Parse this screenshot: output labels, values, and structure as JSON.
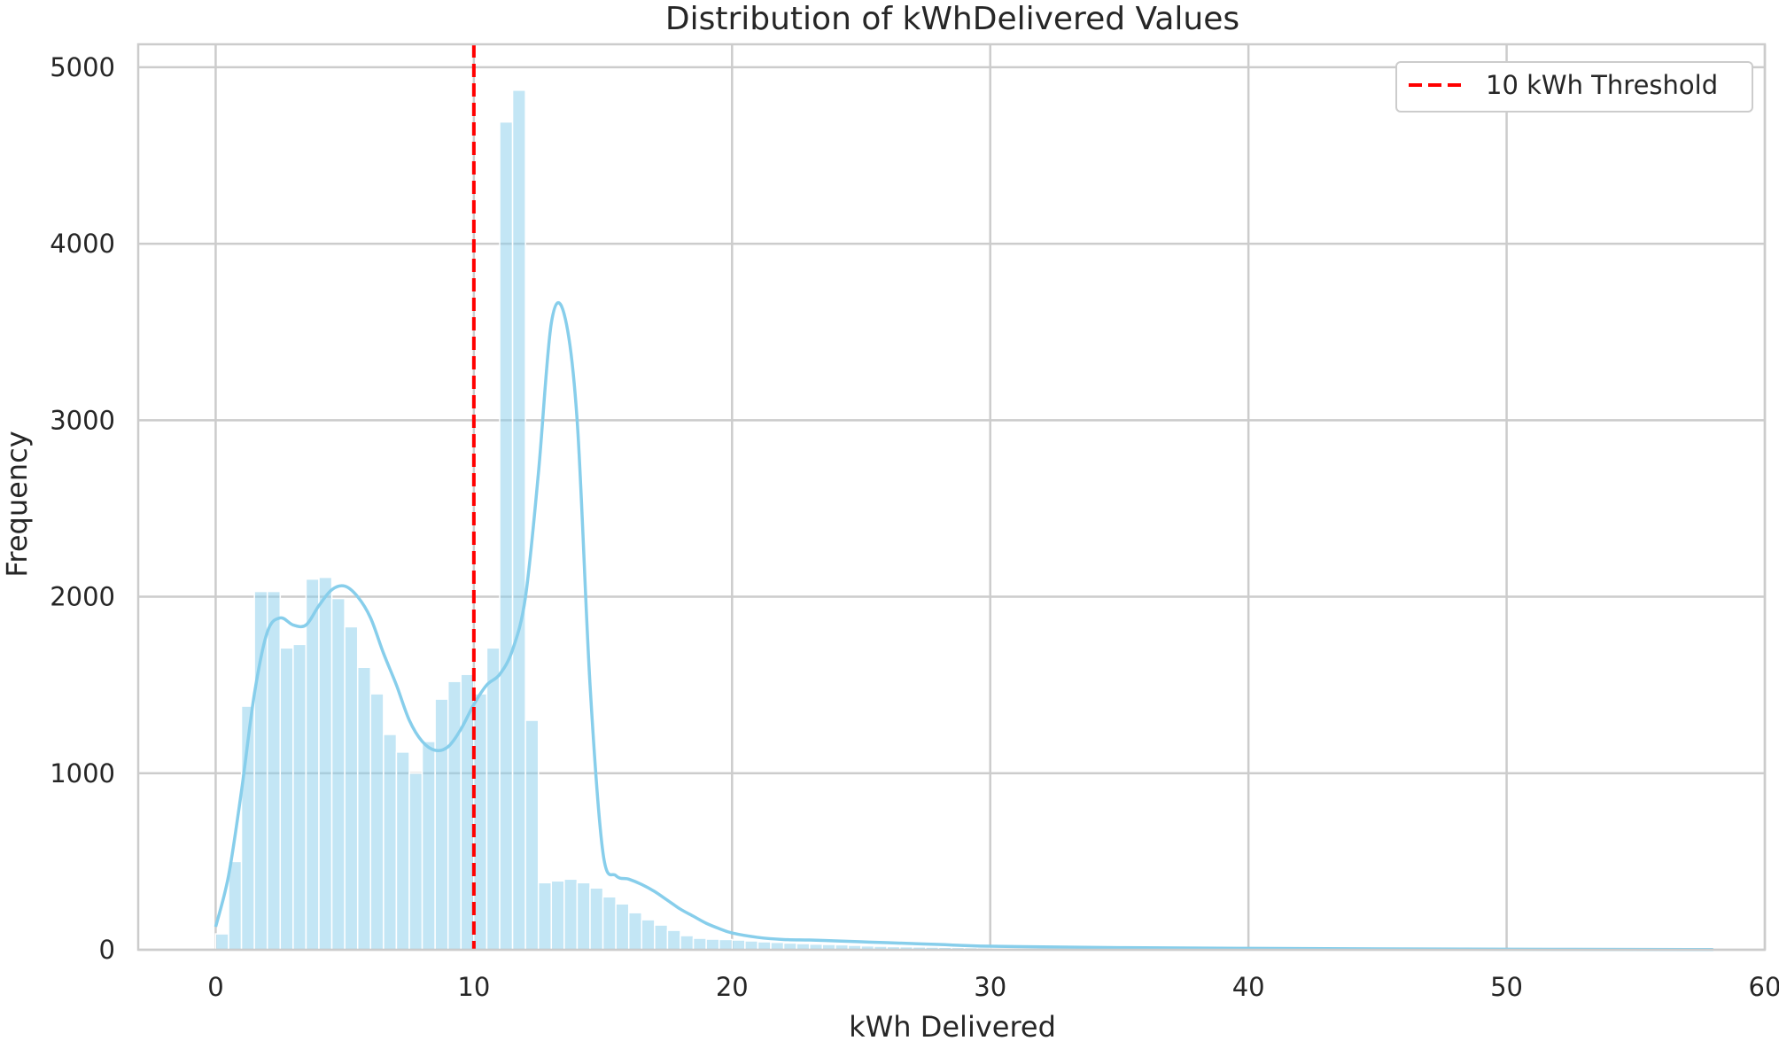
{
  "chart_data": {
    "type": "bar",
    "subtype": "histogram-with-kde",
    "title": "Distribution of kWhDelivered Values",
    "xlabel": "kWh Delivered",
    "ylabel": "Frequency",
    "xlim": [
      -3,
      60
    ],
    "ylim": [
      0,
      5130
    ],
    "xticks": [
      0,
      10,
      20,
      30,
      40,
      50,
      60
    ],
    "yticks": [
      0,
      1000,
      2000,
      3000,
      4000,
      5000
    ],
    "grid": true,
    "legend_position": "top-right",
    "bar_color": "#87ceeb",
    "bin_width": 0.5,
    "bins_start": [
      0,
      0.5,
      1.0,
      1.5,
      2.0,
      2.5,
      3.0,
      3.5,
      4.0,
      4.5,
      5.0,
      5.5,
      6.0,
      6.5,
      7.0,
      7.5,
      8.0,
      8.5,
      9.0,
      9.5,
      10.0,
      10.5,
      11.0,
      11.5,
      12.0,
      12.5,
      13.0,
      13.5,
      14.0,
      14.5,
      15.0,
      15.5,
      16.0,
      16.5,
      17.0,
      17.5,
      18.0,
      18.5,
      19.0,
      19.5,
      20.0,
      20.5,
      21.0,
      21.5,
      22.0,
      22.5,
      23.0,
      23.5,
      24.0,
      24.5,
      25.0,
      25.5,
      26.0,
      26.5,
      27.0,
      27.5,
      28.0,
      28.5,
      29.0,
      29.5
    ],
    "values": [
      90,
      500,
      1380,
      2030,
      2030,
      1710,
      1730,
      2100,
      2110,
      1990,
      1830,
      1600,
      1450,
      1220,
      1120,
      1000,
      1180,
      1420,
      1520,
      1560,
      1450,
      1710,
      4690,
      4870,
      1300,
      380,
      390,
      400,
      380,
      350,
      300,
      260,
      210,
      170,
      140,
      110,
      80,
      65,
      60,
      58,
      55,
      50,
      45,
      42,
      38,
      35,
      32,
      30,
      28,
      25,
      22,
      20,
      18,
      17,
      16,
      15,
      14,
      13,
      12,
      11
    ],
    "kde": {
      "color": "#87ceeb",
      "x": [
        0,
        0.5,
        1,
        1.5,
        2,
        2.5,
        3,
        3.5,
        4,
        4.5,
        5,
        5.5,
        6,
        6.5,
        7,
        7.5,
        8,
        8.5,
        9,
        9.5,
        10,
        10.5,
        11,
        11.5,
        12,
        12.5,
        13,
        13.5,
        14,
        14.5,
        15,
        15.5,
        16,
        16.5,
        17,
        17.5,
        18,
        18.5,
        19,
        19.5,
        20,
        21,
        22,
        23,
        24,
        25,
        26,
        28,
        30,
        35,
        40,
        45,
        50,
        55,
        58
      ],
      "y": [
        130,
        420,
        900,
        1450,
        1800,
        1880,
        1840,
        1840,
        1950,
        2040,
        2060,
        2000,
        1880,
        1680,
        1500,
        1300,
        1180,
        1130,
        1150,
        1250,
        1390,
        1500,
        1560,
        1700,
        2000,
        2700,
        3550,
        3600,
        3000,
        1500,
        550,
        420,
        400,
        370,
        330,
        280,
        230,
        190,
        150,
        120,
        95,
        70,
        58,
        55,
        50,
        45,
        40,
        30,
        20,
        12,
        8,
        5,
        3,
        2,
        1
      ]
    },
    "threshold": {
      "x": 10,
      "label": "10 kWh Threshold",
      "color": "#ff0000"
    }
  }
}
